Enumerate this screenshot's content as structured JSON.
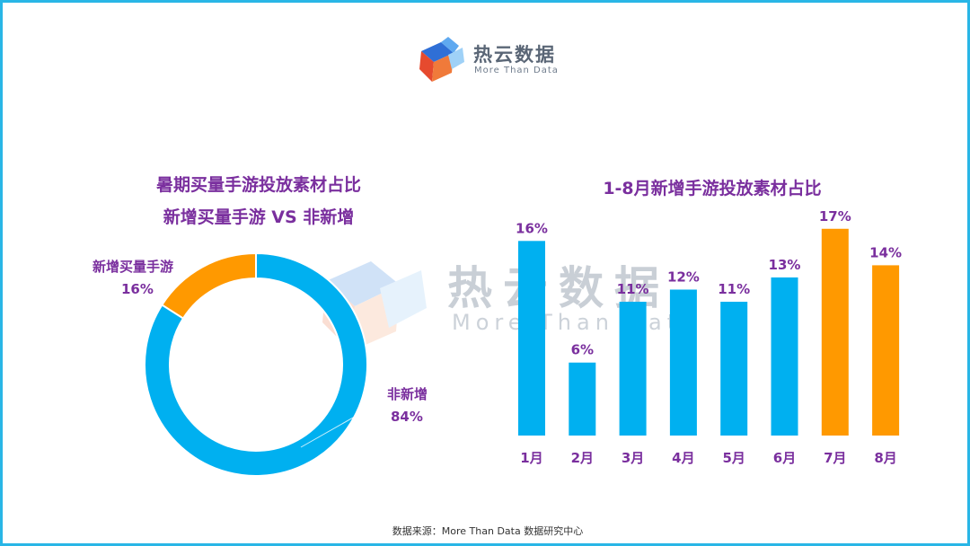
{
  "header": {
    "logo_name": "热云数据",
    "logo_sub": "More Than Data"
  },
  "watermark": {
    "name": "热云数据",
    "sub": "More Than Data"
  },
  "colors": {
    "blue": "#00b0f0",
    "orange": "#ff9900",
    "title_purple": "#7a2f9e",
    "frame": "#29b6e6"
  },
  "chart_data": [
    {
      "type": "pie",
      "style": "donut",
      "title_lines": [
        "暑期买量手游投放素材占比",
        "新增买量手游 VS 非新增"
      ],
      "slices": [
        {
          "label": "新增买量手游",
          "value": 16,
          "value_label": "16%",
          "color": "#ff9900"
        },
        {
          "label": "非新增",
          "value": 84,
          "value_label": "84%",
          "color": "#00b0f0"
        }
      ]
    },
    {
      "type": "bar",
      "title": "1-8月新增手游投放素材占比",
      "categories": [
        "1月",
        "2月",
        "3月",
        "4月",
        "5月",
        "6月",
        "7月",
        "8月"
      ],
      "values": [
        16,
        6,
        11,
        12,
        11,
        13,
        17,
        14
      ],
      "value_labels": [
        "16%",
        "6%",
        "11%",
        "12%",
        "11%",
        "13%",
        "17%",
        "14%"
      ],
      "bar_colors": [
        "#00b0f0",
        "#00b0f0",
        "#00b0f0",
        "#00b0f0",
        "#00b0f0",
        "#00b0f0",
        "#ff9900",
        "#ff9900"
      ],
      "ylim": [
        0,
        17.5
      ],
      "grid": false,
      "legend": "none"
    }
  ],
  "footer": {
    "source": "数据来源：More Than Data 数据研究中心"
  }
}
